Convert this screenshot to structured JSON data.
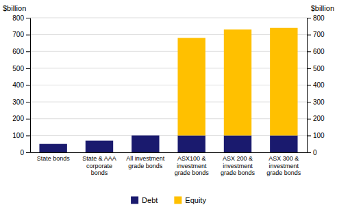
{
  "chart_data": {
    "type": "bar",
    "stacked": true,
    "categories": [
      "State bonds",
      "State & AAA\ncorporate\nbonds",
      "All investment\ngrade bonds",
      "ASX100 &\ninvestment\ngrade bonds",
      "ASX 200 &\ninvestment\ngrade bonds",
      "ASX 300 &\ninvestment\ngrade bonds"
    ],
    "series": [
      {
        "name": "Debt",
        "color": "#1a1a6e",
        "values": [
          50,
          70,
          100,
          100,
          100,
          100
        ]
      },
      {
        "name": "Equity",
        "color": "#ffc000",
        "values": [
          0,
          0,
          0,
          580,
          630,
          640
        ]
      }
    ],
    "ylabel": "$billion",
    "y2label": "$billion",
    "ylim": [
      0,
      800
    ],
    "yticks": [
      0,
      100,
      200,
      300,
      400,
      500,
      600,
      700,
      800
    ],
    "y2lim": [
      0,
      800
    ],
    "y2ticks": [
      0,
      100,
      200,
      300,
      400,
      500,
      600,
      700,
      800
    ],
    "grid": true,
    "legend": "bottom"
  }
}
